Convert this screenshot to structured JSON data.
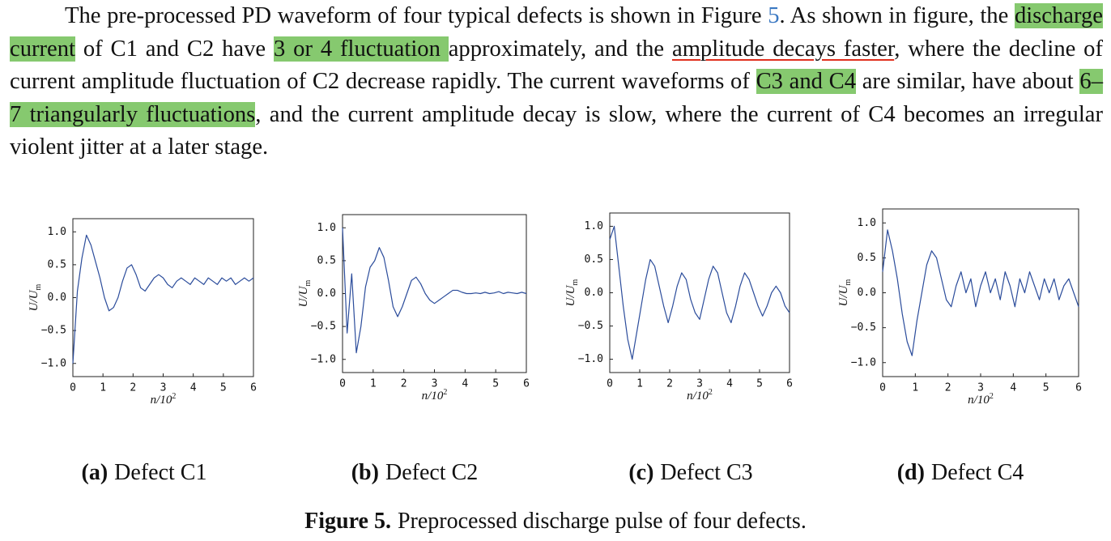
{
  "paragraph": [
    {
      "text": "The pre-processed PD waveform of four typical defects is shown in Figure ",
      "style": "plain"
    },
    {
      "text": "5",
      "style": "link"
    },
    {
      "text": ".  As shown in figure, the ",
      "style": "plain"
    },
    {
      "text": "discharge current",
      "style": "highlight"
    },
    {
      "text": " of C1 and C2 have ",
      "style": "plain"
    },
    {
      "text": "3 or 4 fluctuation ",
      "style": "highlight"
    },
    {
      "text": "approximately, and the ",
      "style": "plain"
    },
    {
      "text": "amplitude decays faster",
      "style": "underline"
    },
    {
      "text": ", where the decline of current amplitude fluctuation of C2 decrease rapidly.  The current waveforms of ",
      "style": "plain"
    },
    {
      "text": "C3 and C4",
      "style": "highlight"
    },
    {
      "text": " are similar, have about ",
      "style": "plain"
    },
    {
      "text": "6–7 triangularly fluctuations",
      "style": "highlight"
    },
    {
      "text": ", and the current amplitude decay is slow, where the current of C4 becomes an irregular violent jitter at a later stage.",
      "style": "plain"
    }
  ],
  "chart_data": [
    {
      "type": "line",
      "color": "#2b4c9b",
      "xlabel": "n/10",
      "xlabel_sup": "2",
      "ylabel": "U/U",
      "ylabel_sub": "m",
      "xlim": [
        0,
        6
      ],
      "ylim": [
        -1.2,
        1.2
      ],
      "xticks": [
        0,
        1,
        2,
        3,
        4,
        5,
        6
      ],
      "yticks": [
        {
          "value": -1,
          "label": "−1.0"
        },
        {
          "value": -0.5,
          "label": "−0.5"
        },
        {
          "value": 0,
          "label": "0.0"
        },
        {
          "value": 0.5,
          "label": "0.5"
        },
        {
          "value": 1,
          "label": "1.0"
        }
      ],
      "x": [
        0,
        0.15,
        0.3,
        0.45,
        0.6,
        0.75,
        0.9,
        1.05,
        1.2,
        1.35,
        1.5,
        1.65,
        1.8,
        1.95,
        2.1,
        2.25,
        2.4,
        2.55,
        2.7,
        2.85,
        3.0,
        3.15,
        3.3,
        3.45,
        3.6,
        3.75,
        3.9,
        4.05,
        4.2,
        4.35,
        4.5,
        4.65,
        4.8,
        4.95,
        5.1,
        5.25,
        5.4,
        5.55,
        5.7,
        5.85,
        6.0
      ],
      "values": [
        -1.0,
        0.1,
        0.6,
        0.95,
        0.8,
        0.55,
        0.3,
        0.0,
        -0.2,
        -0.15,
        0.0,
        0.25,
        0.45,
        0.5,
        0.35,
        0.15,
        0.1,
        0.2,
        0.3,
        0.35,
        0.3,
        0.2,
        0.15,
        0.25,
        0.3,
        0.25,
        0.2,
        0.3,
        0.25,
        0.2,
        0.3,
        0.25,
        0.2,
        0.3,
        0.25,
        0.3,
        0.2,
        0.25,
        0.3,
        0.25,
        0.3
      ]
    },
    {
      "type": "line",
      "color": "#2b4c9b",
      "xlabel": "n/10",
      "xlabel_sup": "2",
      "ylabel": "U/U",
      "ylabel_sub": "m",
      "xlim": [
        0,
        6
      ],
      "ylim": [
        -1.2,
        1.2
      ],
      "xticks": [
        0,
        1,
        2,
        3,
        4,
        5,
        6
      ],
      "yticks": [
        {
          "value": -1,
          "label": "−1.0"
        },
        {
          "value": -0.5,
          "label": "−0.5"
        },
        {
          "value": 0,
          "label": "0.0"
        },
        {
          "value": 0.5,
          "label": "0.5"
        },
        {
          "value": 1,
          "label": "1.0"
        }
      ],
      "x": [
        0,
        0.15,
        0.3,
        0.45,
        0.6,
        0.75,
        0.9,
        1.05,
        1.2,
        1.35,
        1.5,
        1.65,
        1.8,
        1.95,
        2.1,
        2.25,
        2.4,
        2.55,
        2.7,
        2.85,
        3.0,
        3.15,
        3.3,
        3.45,
        3.6,
        3.75,
        3.9,
        4.05,
        4.2,
        4.35,
        4.5,
        4.65,
        4.8,
        4.95,
        5.1,
        5.25,
        5.4,
        5.55,
        5.7,
        5.85,
        6.0
      ],
      "values": [
        1.0,
        -0.6,
        0.3,
        -0.9,
        -0.5,
        0.1,
        0.4,
        0.5,
        0.7,
        0.55,
        0.2,
        -0.2,
        -0.35,
        -0.2,
        0.0,
        0.2,
        0.25,
        0.15,
        0.0,
        -0.1,
        -0.15,
        -0.1,
        -0.05,
        0.0,
        0.05,
        0.05,
        0.02,
        0.0,
        0.0,
        0.01,
        0.0,
        0.02,
        0.0,
        0.01,
        0.03,
        0.0,
        0.02,
        0.01,
        0.0,
        0.02,
        0.0
      ]
    },
    {
      "type": "line",
      "color": "#2b4c9b",
      "xlabel": "n/10",
      "xlabel_sup": "2",
      "ylabel": "U/U",
      "ylabel_sub": "m",
      "xlim": [
        0,
        6
      ],
      "ylim": [
        -1.2,
        1.2
      ],
      "xticks": [
        0,
        1,
        2,
        3,
        4,
        5,
        6
      ],
      "yticks": [
        {
          "value": -1,
          "label": "−1.0"
        },
        {
          "value": -0.5,
          "label": "−0.5"
        },
        {
          "value": 0,
          "label": "0.0"
        },
        {
          "value": 0.5,
          "label": "0.5"
        },
        {
          "value": 1,
          "label": "1.0"
        }
      ],
      "x": [
        0,
        0.15,
        0.3,
        0.45,
        0.6,
        0.75,
        0.9,
        1.05,
        1.2,
        1.35,
        1.5,
        1.65,
        1.8,
        1.95,
        2.1,
        2.25,
        2.4,
        2.55,
        2.7,
        2.85,
        3.0,
        3.15,
        3.3,
        3.45,
        3.6,
        3.75,
        3.9,
        4.05,
        4.2,
        4.35,
        4.5,
        4.65,
        4.8,
        4.95,
        5.1,
        5.25,
        5.4,
        5.55,
        5.7,
        5.85,
        6.0
      ],
      "values": [
        0.8,
        1.0,
        0.4,
        -0.2,
        -0.7,
        -1.0,
        -0.6,
        -0.2,
        0.2,
        0.5,
        0.4,
        0.1,
        -0.2,
        -0.45,
        -0.2,
        0.1,
        0.3,
        0.2,
        -0.1,
        -0.3,
        -0.4,
        -0.1,
        0.2,
        0.4,
        0.3,
        0.0,
        -0.3,
        -0.45,
        -0.2,
        0.1,
        0.3,
        0.2,
        0.0,
        -0.2,
        -0.35,
        -0.2,
        0.0,
        0.1,
        0.0,
        -0.2,
        -0.3
      ]
    },
    {
      "type": "line",
      "color": "#2b4c9b",
      "xlabel": "n/10",
      "xlabel_sup": "2",
      "ylabel": "U/U",
      "ylabel_sub": "m",
      "xlim": [
        0,
        6
      ],
      "ylim": [
        -1.2,
        1.2
      ],
      "xticks": [
        0,
        1,
        2,
        3,
        4,
        5,
        6
      ],
      "yticks": [
        {
          "value": -1,
          "label": "−1.0"
        },
        {
          "value": -0.5,
          "label": "−0.5"
        },
        {
          "value": 0,
          "label": "0.0"
        },
        {
          "value": 0.5,
          "label": "0.5"
        },
        {
          "value": 1,
          "label": "1.0"
        }
      ],
      "x": [
        0,
        0.15,
        0.3,
        0.45,
        0.6,
        0.75,
        0.9,
        1.05,
        1.2,
        1.35,
        1.5,
        1.65,
        1.8,
        1.95,
        2.1,
        2.25,
        2.4,
        2.55,
        2.7,
        2.85,
        3.0,
        3.15,
        3.3,
        3.45,
        3.6,
        3.75,
        3.9,
        4.05,
        4.2,
        4.35,
        4.5,
        4.65,
        4.8,
        4.95,
        5.1,
        5.25,
        5.4,
        5.55,
        5.7,
        5.85,
        6.0
      ],
      "values": [
        0.3,
        0.9,
        0.6,
        0.2,
        -0.3,
        -0.7,
        -0.9,
        -0.4,
        0.0,
        0.4,
        0.6,
        0.5,
        0.2,
        -0.1,
        -0.2,
        0.1,
        0.3,
        0.0,
        0.2,
        -0.2,
        0.1,
        0.3,
        0.0,
        0.2,
        -0.1,
        0.3,
        0.1,
        -0.2,
        0.2,
        0.0,
        0.3,
        0.1,
        -0.1,
        0.2,
        0.0,
        0.2,
        -0.1,
        0.1,
        0.2,
        0.0,
        -0.2
      ]
    }
  ],
  "figure": {
    "subcaptions": [
      {
        "label": "(a)",
        "text": "Defect C1"
      },
      {
        "label": "(b)",
        "text": "Defect C2"
      },
      {
        "label": "(c)",
        "text": "Defect C3"
      },
      {
        "label": "(d)",
        "text": "Defect C4"
      }
    ],
    "caption_label": "Figure 5.",
    "caption": "Preprocessed discharge pulse of four defects."
  }
}
